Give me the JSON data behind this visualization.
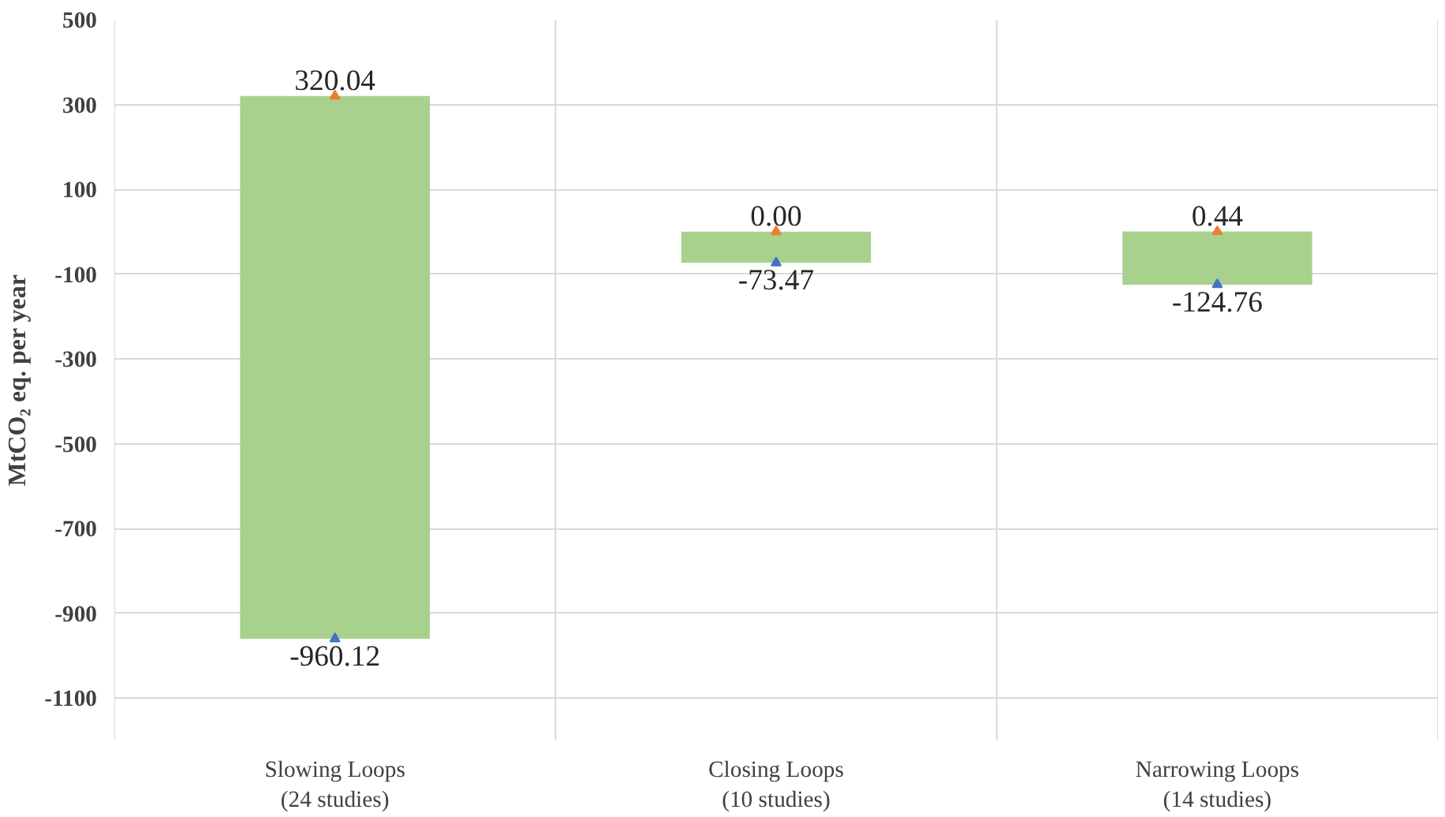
{
  "chart_data": {
    "type": "bar",
    "ylabel": "MtCO₂ eq. per year",
    "categories": [
      "Slowing Loops\n(24 studies)",
      "Closing Loops\n(10 studies)",
      "Narrowing Loops\n(14 studies)"
    ],
    "ylim": [
      -1200,
      500
    ],
    "yticks": [
      -1100,
      -900,
      -700,
      -500,
      -300,
      -100,
      100,
      300,
      500
    ],
    "grid": true,
    "marker": "triangle",
    "series": [
      {
        "color": "#a9d18e",
        "base": [
          -960.12,
          -73.47,
          -124.76
        ],
        "values": [
          1280.16,
          73.47,
          125.2
        ]
      },
      {
        "type": "scatter",
        "color": "#ed7d31",
        "values": [
          320.04,
          0.0,
          0.44
        ],
        "value_labels": [
          "320.04",
          "0.00",
          "0.44"
        ]
      },
      {
        "type": "scatter",
        "color": "#4472c4",
        "values": [
          -960.12,
          -73.47,
          -124.76
        ],
        "value_labels": [
          "-960.12",
          "-73.47",
          "-124.76"
        ]
      }
    ]
  }
}
